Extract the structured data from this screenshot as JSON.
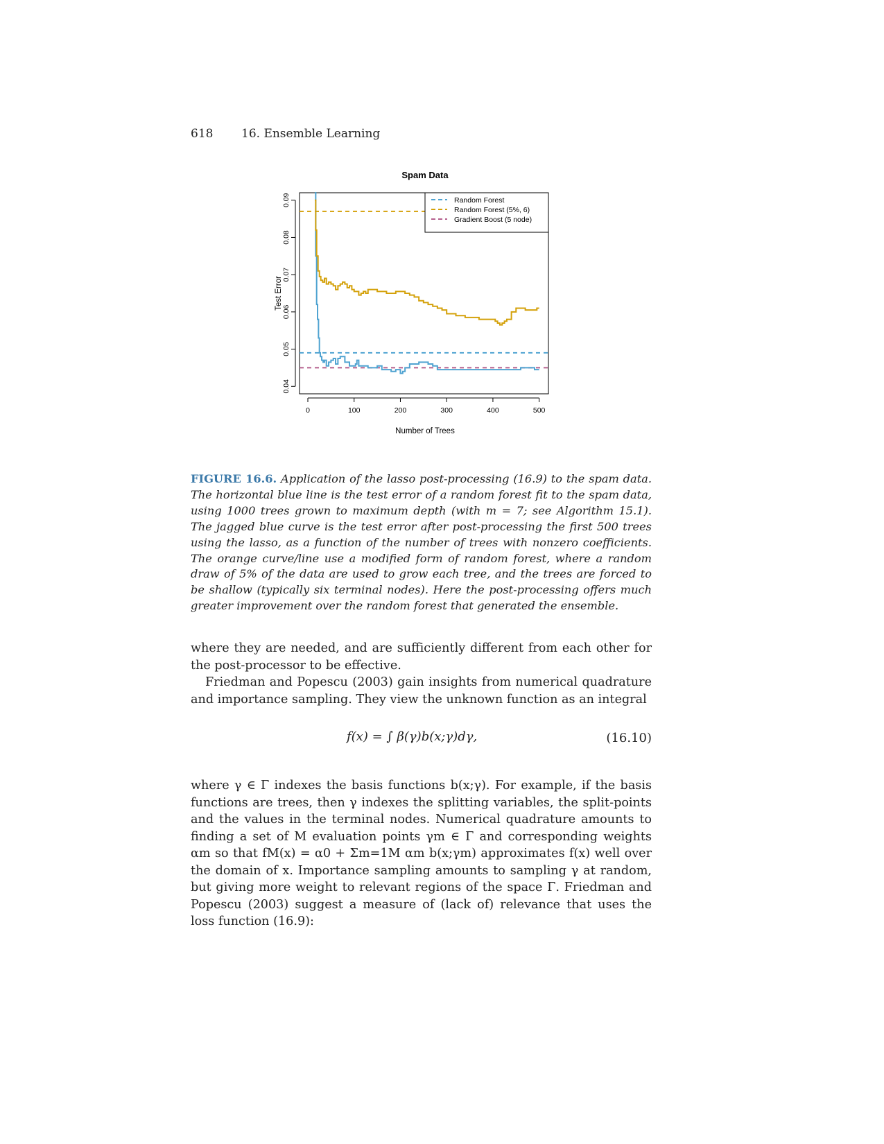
{
  "header": {
    "page_number": "618",
    "chapter": "16.  Ensemble Learning"
  },
  "chart_data": {
    "type": "line",
    "title": "Spam Data",
    "xlabel": "Number of Trees",
    "ylabel": "Test Error",
    "xlim": [
      -18,
      520
    ],
    "ylim": [
      0.038,
      0.092
    ],
    "xticks": [
      "0",
      "100",
      "200",
      "300",
      "400",
      "500"
    ],
    "yticks": [
      "0.04",
      "0.05",
      "0.06",
      "0.07",
      "0.08",
      "0.09"
    ],
    "legend_position": "top-right",
    "legend": [
      {
        "name": "Random Forest",
        "color": "#4fa3d1"
      },
      {
        "name": "Random Forest (5%, 6)",
        "color": "#d4a10a"
      },
      {
        "name": "Gradient Boost (5 node)",
        "color": "#b5608e"
      }
    ],
    "hlines": [
      {
        "series": "Random Forest",
        "y": 0.049,
        "color": "#4fa3d1"
      },
      {
        "series": "Random Forest (5%, 6)",
        "y": 0.087,
        "color": "#d4a10a"
      },
      {
        "series": "Gradient Boost (5 node)",
        "y": 0.045,
        "color": "#b5608e"
      }
    ],
    "series": [
      {
        "name": "Random Forest",
        "color": "#4fa3d1",
        "x": [
          15,
          17,
          19,
          21,
          23,
          25,
          27,
          30,
          33,
          36,
          40,
          45,
          50,
          55,
          60,
          65,
          70,
          75,
          80,
          90,
          95,
          100,
          103,
          106,
          110,
          120,
          130,
          140,
          150,
          160,
          170,
          180,
          190,
          200,
          205,
          210,
          220,
          230,
          240,
          250,
          260,
          270,
          280,
          290,
          300,
          310,
          320,
          330,
          340,
          350,
          360,
          370,
          380,
          390,
          400,
          410,
          420,
          430,
          440,
          450,
          460,
          470,
          480,
          490,
          495,
          500
        ],
        "y": [
          0.092,
          0.075,
          0.062,
          0.058,
          0.053,
          0.049,
          0.048,
          0.047,
          0.0465,
          0.047,
          0.0455,
          0.0465,
          0.047,
          0.0475,
          0.046,
          0.0475,
          0.048,
          0.048,
          0.0465,
          0.0455,
          0.0455,
          0.0455,
          0.046,
          0.047,
          0.0455,
          0.0455,
          0.045,
          0.045,
          0.0455,
          0.0445,
          0.0445,
          0.044,
          0.0445,
          0.0435,
          0.044,
          0.045,
          0.046,
          0.046,
          0.0465,
          0.0465,
          0.046,
          0.0455,
          0.0445,
          0.0445,
          0.0445,
          0.0445,
          0.0445,
          0.0445,
          0.0445,
          0.0445,
          0.0445,
          0.0445,
          0.0445,
          0.0445,
          0.0445,
          0.0445,
          0.0445,
          0.0445,
          0.0445,
          0.0445,
          0.045,
          0.045,
          0.045,
          0.0445,
          0.0445,
          0.0445
        ]
      },
      {
        "name": "Random Forest (5%, 6)",
        "color": "#d4a10a",
        "x": [
          15,
          17,
          19,
          22,
          25,
          28,
          32,
          36,
          40,
          45,
          50,
          55,
          60,
          65,
          70,
          75,
          80,
          85,
          90,
          95,
          100,
          105,
          110,
          115,
          120,
          125,
          130,
          140,
          150,
          160,
          170,
          180,
          190,
          200,
          210,
          220,
          230,
          240,
          250,
          260,
          270,
          280,
          290,
          300,
          320,
          340,
          350,
          360,
          370,
          380,
          390,
          400,
          405,
          410,
          415,
          420,
          425,
          430,
          440,
          450,
          460,
          470,
          480,
          490,
          495,
          500
        ],
        "y": [
          0.09,
          0.082,
          0.075,
          0.071,
          0.0695,
          0.0685,
          0.068,
          0.069,
          0.0675,
          0.068,
          0.0675,
          0.067,
          0.066,
          0.067,
          0.0675,
          0.068,
          0.0675,
          0.0665,
          0.067,
          0.066,
          0.0655,
          0.0655,
          0.0645,
          0.065,
          0.0655,
          0.065,
          0.066,
          0.066,
          0.0655,
          0.0655,
          0.065,
          0.065,
          0.0655,
          0.0655,
          0.065,
          0.0645,
          0.064,
          0.063,
          0.0625,
          0.062,
          0.0615,
          0.061,
          0.0605,
          0.0595,
          0.059,
          0.0585,
          0.0585,
          0.0585,
          0.058,
          0.058,
          0.058,
          0.058,
          0.0575,
          0.057,
          0.0565,
          0.057,
          0.0575,
          0.058,
          0.06,
          0.061,
          0.061,
          0.0605,
          0.0605,
          0.0605,
          0.061,
          0.061
        ]
      }
    ]
  },
  "caption": {
    "label": "FIGURE 16.6.",
    "text": "Application of the lasso post-processing (16.9) to the spam data. The horizontal blue line is the test error of a random forest fit to the spam data, using 1000 trees grown to maximum depth (with m = 7; see Algorithm 15.1). The jagged blue curve is the test error after post-processing the first 500 trees using the lasso, as a function of the number of trees with nonzero coefficients. The orange curve/line use a modified form of random forest, where a random draw of 5% of the data are used to grow each tree, and the trees are forced to be shallow (typically six terminal nodes). Here the post-processing offers much greater improvement over the random forest that generated the ensemble."
  },
  "body": {
    "p1": "where they are needed, and are sufficiently different from each other for the post-processor to be effective.",
    "p2": "Friedman and Popescu (2003) gain insights from numerical quadrature and importance sampling. They view the unknown function as an integral",
    "equation": "f(x) = ∫ β(γ)b(x;γ)dγ,",
    "equation_number": "(16.10)",
    "p3": "where γ ∈ Γ indexes the basis functions b(x;γ). For example, if the basis functions are trees, then γ indexes the splitting variables, the split-points and the values in the terminal nodes. Numerical quadrature amounts to finding a set of M evaluation points γm ∈ Γ and corresponding weights αm so that fM(x) = α0 + Σm=1M αm b(x;γm) approximates f(x) well over the domain of x. Importance sampling amounts to sampling γ at random, but giving more weight to relevant regions of the space Γ. Friedman and Popescu (2003) suggest a measure of (lack of) relevance that uses the loss function (16.9):"
  }
}
